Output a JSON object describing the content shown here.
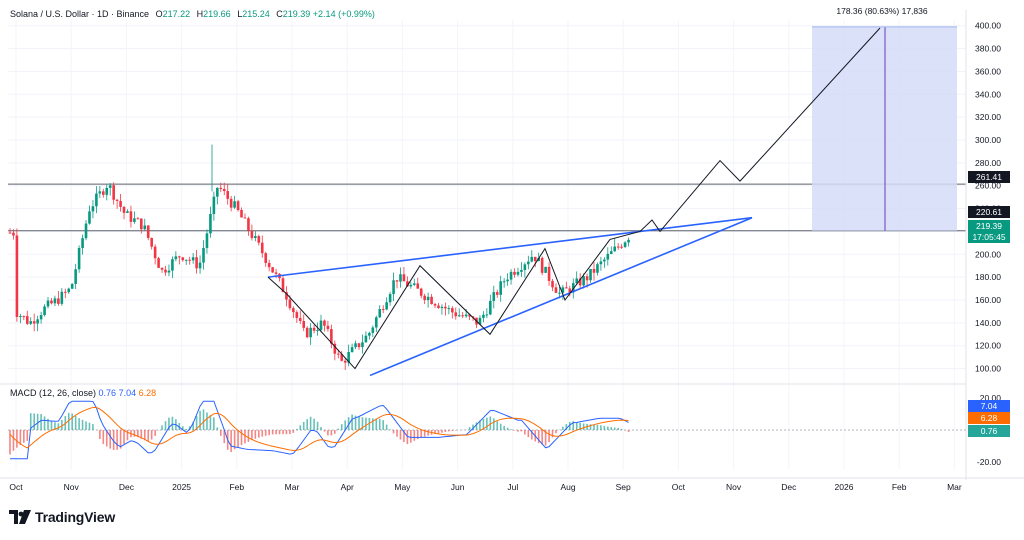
{
  "header": {
    "symbol": "Solana / U.S. Dollar · 1D · Binance",
    "open_label": "O",
    "open": "217.22",
    "high_label": "H",
    "high": "219.66",
    "low_label": "L",
    "low": "215.24",
    "close_label": "C",
    "close": "219.39",
    "change": "+2.14 (+0.99%)"
  },
  "measure_label": "178.36 (80.63%) 17,836",
  "price_tags": {
    "resistance_upper": "261.41",
    "resistance_lower": "220.61",
    "last_price": "219.39",
    "countdown": "17:05:45"
  },
  "macd": {
    "label": "MACD (12, 26, close)",
    "v1": "0.76",
    "v2": "7.04",
    "v3": "6.28",
    "tags": {
      "blue": "7.04",
      "orange": "6.28",
      "hist": "0.76"
    }
  },
  "brand": "TradingView",
  "colors": {
    "up": "#089981",
    "down": "#f23645",
    "trend": "#2962ff",
    "macd": "#2962ff",
    "signal": "#ff6d00"
  },
  "chart_data": {
    "type": "candlestick",
    "y_ticks": [
      "400.00",
      "380.00",
      "360.00",
      "340.00",
      "320.00",
      "300.00",
      "280.00",
      "260.00",
      "240.00",
      "220.00",
      "200.00",
      "180.00",
      "160.00",
      "140.00",
      "120.00",
      "100.00"
    ],
    "x_ticks": [
      "Oct",
      "Nov",
      "Dec",
      "2025",
      "Feb",
      "Mar",
      "Apr",
      "May",
      "Jun",
      "Jul",
      "Aug",
      "Sep",
      "Oct",
      "Nov",
      "Dec",
      "2026",
      "Feb",
      "Mar"
    ],
    "ylim": [
      90,
      405
    ],
    "horizontal_lines": [
      261.41,
      220.61
    ],
    "price_anchors": [
      [
        "Oct",
        150
      ],
      [
        "Oct",
        140
      ],
      [
        "Oct",
        152
      ],
      [
        "Oct",
        160
      ],
      [
        "Nov",
        170
      ],
      [
        "Nov",
        240
      ],
      [
        "Nov",
        262
      ],
      [
        "Dec",
        235
      ],
      [
        "Dec",
        225
      ],
      [
        "Dec",
        185
      ],
      [
        "2025",
        200
      ],
      [
        "2025",
        190
      ],
      [
        "2025",
        260
      ],
      [
        "Feb",
        240
      ],
      [
        "Feb",
        200
      ],
      [
        "Mar",
        165
      ],
      [
        "Mar",
        130
      ],
      [
        "Mar",
        140
      ],
      [
        "Apr",
        105
      ],
      [
        "Apr",
        130
      ],
      [
        "May",
        180
      ],
      [
        "May",
        165
      ],
      [
        "Jun",
        150
      ],
      [
        "Jun",
        140
      ],
      [
        "Jul",
        180
      ],
      [
        "Jul",
        200
      ],
      [
        "Aug",
        165
      ],
      [
        "Aug",
        180
      ],
      [
        "Sep",
        205
      ],
      [
        "Sep",
        219
      ]
    ],
    "zigzag_path": [
      [
        268,
        180
      ],
      [
        287,
        165
      ],
      [
        355,
        100
      ],
      [
        420,
        190
      ],
      [
        490,
        130
      ],
      [
        545,
        205
      ],
      [
        565,
        160
      ],
      [
        610,
        213
      ],
      [
        640,
        220
      ],
      [
        652,
        230
      ],
      [
        660,
        220
      ],
      [
        720,
        282
      ],
      [
        740,
        264
      ],
      [
        880,
        398
      ]
    ],
    "trendline_upper": [
      [
        268,
        180
      ],
      [
        752,
        232
      ]
    ],
    "trendline_lower": [
      [
        370,
        94
      ],
      [
        752,
        232
      ]
    ],
    "projection_box": {
      "price_low": 220.61,
      "price_high": 398.97
    },
    "macd_ylim": [
      -25,
      25
    ],
    "macd_ticks": [
      "20.00",
      "-20.00"
    ]
  }
}
